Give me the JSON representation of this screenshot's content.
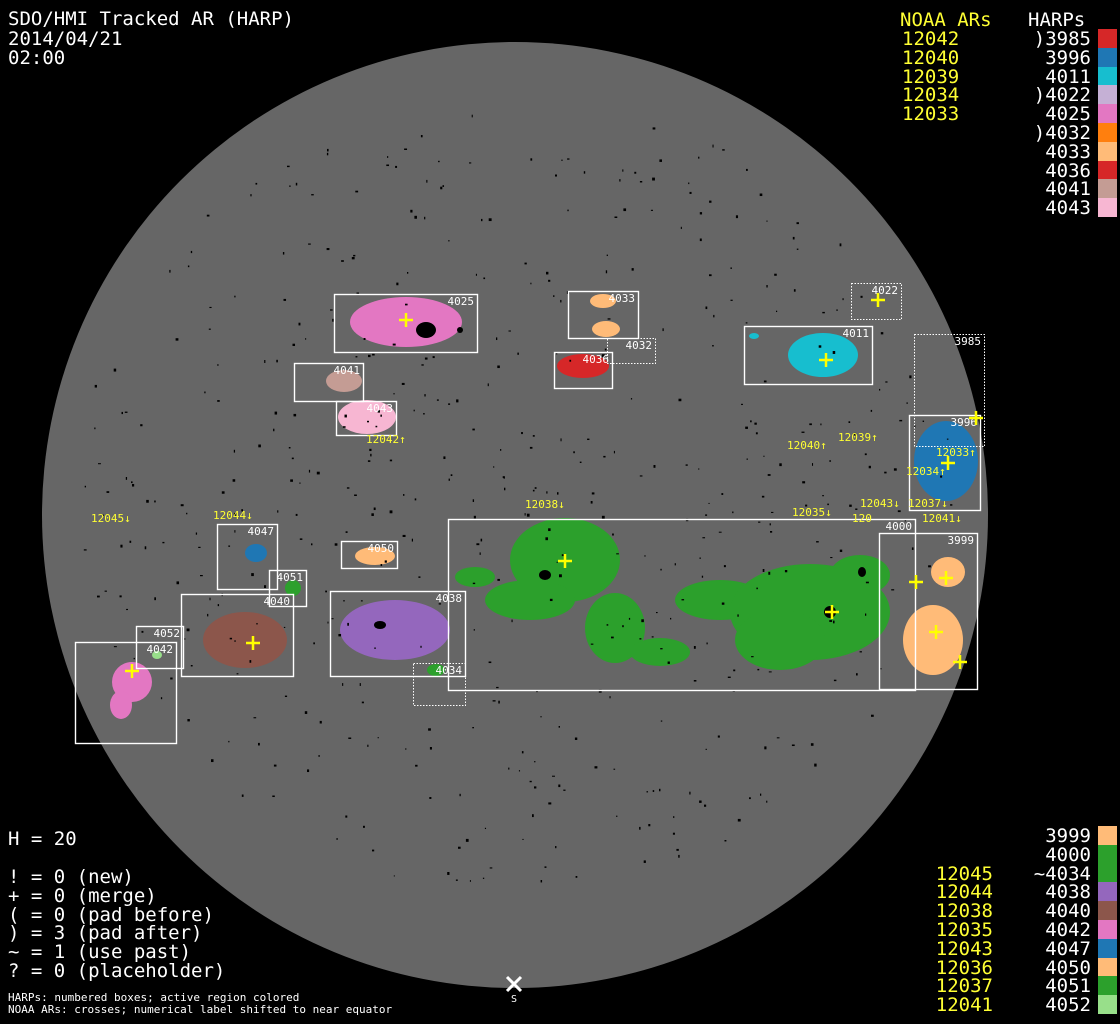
{
  "header": {
    "title": "SDO/HMI Tracked AR (HARP)",
    "date": "2014/04/21",
    "time": "02:00"
  },
  "legend_top": {
    "noaa_heading": "NOAA ARs",
    "harps_heading": "HARPs",
    "noaa": [
      "12042",
      "12040",
      "12039",
      "12034",
      "12033"
    ],
    "harps": [
      ")3985",
      "3996",
      "4011",
      ")4022",
      "4025",
      ")4032",
      "4033",
      "4036",
      "4041",
      "4043"
    ],
    "colors": [
      "#d62728",
      "#1f77b4",
      "#17becf",
      "#c5b0d5",
      "#e377c2",
      "#ff7f0e",
      "#ffbb78",
      "#d62728",
      "#c49c94",
      "#f7b6d2"
    ]
  },
  "legend_bottom": {
    "noaa": [
      "",
      "",
      "12045",
      "12044",
      "12038",
      "12035",
      "12043",
      "12036",
      "12037",
      "12041"
    ],
    "harps": [
      "3999",
      "4000",
      "~4034",
      "4038",
      "4040",
      "4042",
      "4047",
      "4050",
      "4051",
      "4052"
    ],
    "colors": [
      "#ffbb78",
      "#2ca02c",
      "#2ca02c",
      "#9467bd",
      "#8c564b",
      "#e377c2",
      "#1f77b4",
      "#ffbb78",
      "#2ca02c",
      "#98df8a"
    ]
  },
  "stats": {
    "h": "H = 20",
    "lines": [
      "! = 0 (new)",
      "+ = 0 (merge)",
      "( = 0 (pad before)",
      ") = 3 (pad after)",
      "~ = 1 (use past)",
      "? = 0 (placeholder)"
    ]
  },
  "notes": [
    "HARPs: numbered boxes; active region colored",
    "NOAA ARs: crosses; numerical label shifted to near equator"
  ],
  "disk": {
    "background_color": "#666666",
    "south_marker": "S",
    "harp_boxes": [
      "4025",
      "4033",
      "4032",
      "4036",
      "4022",
      "4011",
      "3985",
      "3996",
      "4041",
      "4043",
      "4047",
      "4051",
      "4050",
      "4040",
      "4038",
      "4034",
      "4052",
      "4042",
      "4000",
      "3999"
    ],
    "noaa_labels": [
      "12045↓",
      "12044↓",
      "12042↑",
      "12038↓",
      "12040↑",
      "12039↑",
      "12035↓",
      "12043↓",
      "12037↓",
      "120",
      "12041↓",
      "12033↑",
      "12034↑"
    ],
    "cross_color": "#ffff00"
  }
}
